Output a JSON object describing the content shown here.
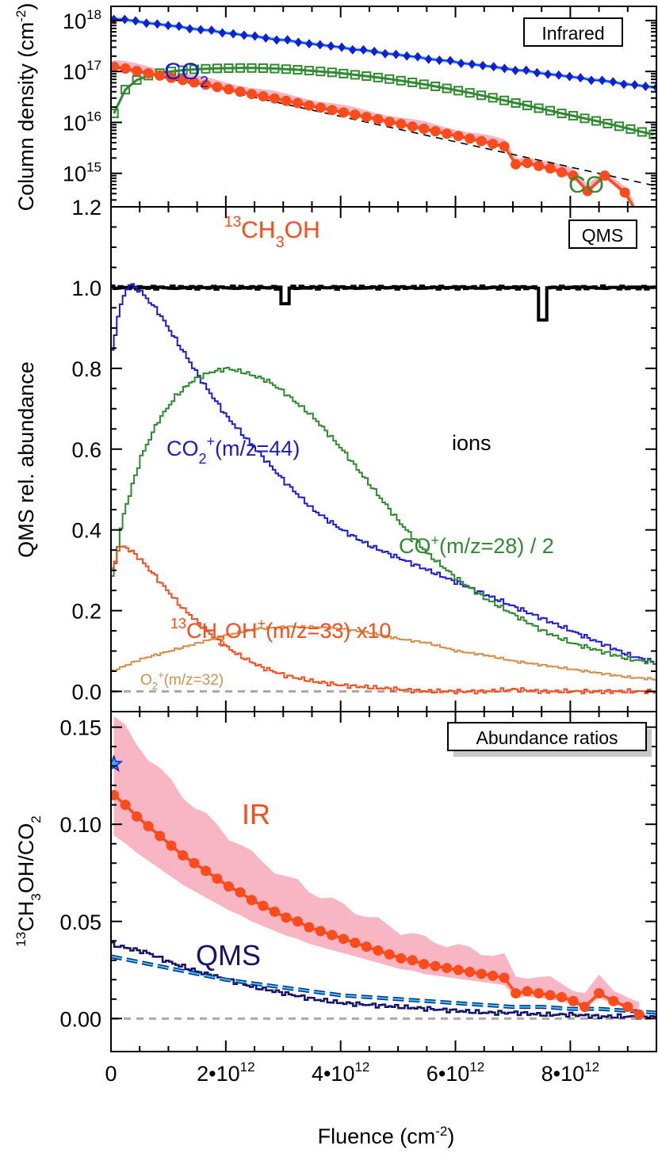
{
  "chart_data": [
    {
      "type": "line",
      "yscale": "log",
      "xlim": [
        0,
        9500000000000.0
      ],
      "ylim": [
        220000000000000.0,
        1.9e+18
      ],
      "ylabel_main": "Column density (cm",
      "ylabel_sup": "-2",
      "ylabel_end": ")",
      "legend_box": "Infrared",
      "yticks": [
        {
          "value": 1000000000000000.0,
          "base": "10",
          "exp": "15"
        },
        {
          "value": 1e+16,
          "base": "10",
          "exp": "16"
        },
        {
          "value": 1e+17,
          "base": "10",
          "exp": "17"
        },
        {
          "value": 1e+18,
          "base": "10",
          "exp": "18"
        }
      ],
      "labels": {
        "co2": {
          "main": "CO",
          "sub": "2"
        },
        "co": {
          "main": "CO"
        },
        "ch3oh": {
          "sup": "13",
          "a": "CH",
          "sub": "3",
          "b": "OH"
        }
      },
      "series": [
        {
          "key": "co2",
          "color": "#1a1adb",
          "fit_color": "#33ccff",
          "logy_start": 18.04,
          "logy_end": 16.68,
          "n": 51
        },
        {
          "key": "co",
          "color": "#2e8b2e",
          "x": [
            50000000000.0,
            250000000000.0,
            450000000000.0,
            650000000000.0,
            850000000000.0,
            1050000000000.0,
            1250000000000.0,
            1450000000000.0,
            1650000000000.0,
            1850000000000.0,
            2050000000000.0,
            2250000000000.0,
            2450000000000.0,
            2650000000000.0,
            2850000000000.0,
            3050000000000.0,
            3250000000000.0,
            3450000000000.0,
            3650000000000.0,
            3850000000000.0,
            4050000000000.0,
            4250000000000.0,
            4450000000000.0,
            4650000000000.0,
            4850000000000.0,
            5050000000000.0,
            5250000000000.0,
            5450000000000.0,
            5650000000000.0,
            5850000000000.0,
            6050000000000.0,
            6250000000000.0,
            6450000000000.0,
            6650000000000.0,
            6850000000000.0,
            7050000000000.0,
            7250000000000.0,
            7450000000000.0,
            7650000000000.0,
            7850000000000.0,
            8050000000000.0,
            8250000000000.0,
            8450000000000.0,
            8650000000000.0,
            8850000000000.0,
            9050000000000.0,
            9250000000000.0,
            9450000000000.0
          ],
          "y": [
            1.5e+16,
            4.4e+16,
            6.8e+16,
            8.3e+16,
            9.3e+16,
            1e+17,
            1.06e+17,
            1.1e+17,
            1.13e+17,
            1.15e+17,
            1.16e+17,
            1.17e+17,
            1.17e+17,
            1.16e+17,
            1.14e+17,
            1.11e+17,
            1.08e+17,
            1.04e+17,
            1e+17,
            9.6e+16,
            9.1e+16,
            8.6e+16,
            8.1e+16,
            7.6e+16,
            7.1e+16,
            6.6e+16,
            6.1e+16,
            5.6e+16,
            5.1e+16,
            4.65e+16,
            4.2e+16,
            3.8e+16,
            3.4e+16,
            3.05e+16,
            2.7e+16,
            2.4e+16,
            2.15e+16,
            1.9e+16,
            1.7e+16,
            1.5e+16,
            1.35e+16,
            1.2e+16,
            1.07e+16,
            9500000000000000.0,
            8400000000000000.0,
            7400000000000000.0,
            6500000000000000.0,
            5800000000000000.0
          ]
        },
        {
          "key": "ch3oh",
          "color": "#ff4a1a",
          "band_color": "#f8b6c4",
          "x": [
            50000000000.0,
            250000000000.0,
            450000000000.0,
            650000000000.0,
            850000000000.0,
            1050000000000.0,
            1250000000000.0,
            1450000000000.0,
            1650000000000.0,
            1850000000000.0,
            2050000000000.0,
            2250000000000.0,
            2450000000000.0,
            2650000000000.0,
            2850000000000.0,
            3050000000000.0,
            3250000000000.0,
            3450000000000.0,
            3650000000000.0,
            3850000000000.0,
            4050000000000.0,
            4250000000000.0,
            4450000000000.0,
            4650000000000.0,
            4850000000000.0,
            5050000000000.0,
            5250000000000.0,
            5450000000000.0,
            5650000000000.0,
            5850000000000.0,
            6050000000000.0,
            6250000000000.0,
            6450000000000.0,
            6650000000000.0,
            6850000000000.0,
            7050000000000.0,
            7250000000000.0,
            7450000000000.0,
            7650000000000.0,
            7850000000000.0,
            8050000000000.0,
            8300000000000.0,
            8600000000000.0,
            8950000000000.0,
            9100000000000.0
          ],
          "y": [
            1.25e+17,
            1.14e+17,
            1.02e+17,
            9.2e+16,
            8.3e+16,
            7.5e+16,
            6.8e+16,
            6.1e+16,
            5.5e+16,
            4.95e+16,
            4.45e+16,
            4e+16,
            3.6e+16,
            3.25e+16,
            2.95e+16,
            2.65e+16,
            2.4e+16,
            2.15e+16,
            1.95e+16,
            1.75e+16,
            1.57e+16,
            1.42e+16,
            1.28e+16,
            1.15e+16,
            1.03e+16,
            9300000000000000.0,
            8300000000000000.0,
            7500000000000000.0,
            6700000000000000.0,
            6000000000000000.0,
            5400000000000000.0,
            4800000000000000.0,
            4300000000000000.0,
            3800000000000000.0,
            3400000000000000.0,
            1500000000000000.0,
            1600000000000000.0,
            1400000000000000.0,
            1250000000000000.0,
            1050000000000000.0,
            900000000000000.0,
            450000000000000.0,
            900000000000000.0,
            420000000000000.0,
            220000000000000.0
          ]
        },
        {
          "key": "fit",
          "color": "#000000",
          "logy_start": 17.1,
          "logy_end": 14.75
        }
      ]
    },
    {
      "type": "line",
      "xlim": [
        0,
        9500000000000.0
      ],
      "ylim": [
        -0.05,
        1.2
      ],
      "ylabel": "QMS rel. abundance",
      "legend_box": "QMS",
      "yticks": [
        "0.0",
        "0.2",
        "0.4",
        "0.6",
        "0.8",
        "1.0",
        "1.2"
      ],
      "labels": {
        "co2": {
          "main": "CO",
          "sub": "2",
          "sup": "+",
          "rest": "(m/z=44)"
        },
        "co": {
          "main": "CO",
          "sup": "+",
          "rest": "(m/z=28) / 2"
        },
        "ch3oh": {
          "sup1": "13",
          "a": "CH",
          "sub": "3",
          "b": "OH",
          "sup2": "+",
          "rest": "(m/z=33) x10"
        },
        "o2": {
          "main": "O",
          "sub": "2",
          "sup": "+",
          "rest": "(m/z=32)"
        },
        "ions": "ions"
      },
      "series": [
        {
          "key": "ions",
          "color": "#000000",
          "level": 1.0,
          "dips": [
            {
              "x": 3000000000000.0,
              "y": 0.96
            },
            {
              "x": 7500000000000.0,
              "y": 0.92
            }
          ]
        },
        {
          "key": "co2",
          "color": "#1a1adb",
          "x": [
            0,
            100000000000.0,
            200000000000.0,
            300000000000.0,
            500000000000.0,
            800000000000.0,
            1200000000000.0,
            1600000000000.0,
            2000000000000.0,
            2500000000000.0,
            3000000000000.0,
            3500000000000.0,
            4000000000000.0,
            4500000000000.0,
            5000000000000.0,
            5500000000000.0,
            6000000000000.0,
            6500000000000.0,
            7000000000000.0,
            7500000000000.0,
            8000000000000.0,
            8500000000000.0,
            9000000000000.0,
            9500000000000.0
          ],
          "y": [
            0.84,
            0.93,
            0.98,
            1.01,
            0.99,
            0.94,
            0.85,
            0.76,
            0.68,
            0.6,
            0.52,
            0.45,
            0.4,
            0.36,
            0.33,
            0.3,
            0.27,
            0.24,
            0.21,
            0.18,
            0.15,
            0.12,
            0.09,
            0.07
          ]
        },
        {
          "key": "co",
          "color": "#2e8b2e",
          "x": [
            0,
            200000000000.0,
            500000000000.0,
            800000000000.0,
            1100000000000.0,
            1400000000000.0,
            1700000000000.0,
            2000000000000.0,
            2300000000000.0,
            2700000000000.0,
            3000000000000.0,
            3500000000000.0,
            4000000000000.0,
            4500000000000.0,
            5000000000000.0,
            5500000000000.0,
            6000000000000.0,
            6500000000000.0,
            7000000000000.0,
            7500000000000.0,
            8000000000000.0,
            8500000000000.0,
            9000000000000.0,
            9500000000000.0
          ],
          "y": [
            0.28,
            0.44,
            0.58,
            0.67,
            0.73,
            0.77,
            0.79,
            0.8,
            0.79,
            0.77,
            0.74,
            0.68,
            0.6,
            0.51,
            0.42,
            0.34,
            0.28,
            0.23,
            0.19,
            0.15,
            0.12,
            0.1,
            0.08,
            0.07
          ]
        },
        {
          "key": "ch3oh",
          "color": "#ff4a1a",
          "x": [
            0,
            100000000000.0,
            200000000000.0,
            400000000000.0,
            600000000000.0,
            900000000000.0,
            1200000000000.0,
            1500000000000.0,
            1800000000000.0,
            2200000000000.0,
            2600000000000.0,
            3000000000000.0,
            3500000000000.0,
            4000000000000.0,
            4500000000000.0,
            5000000000000.0,
            5500000000000.0,
            6000000000000.0,
            6500000000000.0,
            7000000000000.0,
            7500000000000.0,
            8000000000000.0,
            8500000000000.0,
            9000000000000.0,
            9500000000000.0
          ],
          "y": [
            0.3,
            0.35,
            0.36,
            0.34,
            0.31,
            0.26,
            0.21,
            0.17,
            0.13,
            0.09,
            0.06,
            0.04,
            0.025,
            0.015,
            0.01,
            0.005,
            0.0,
            0.0,
            0.0,
            0.005,
            0.0,
            0.0,
            0.0,
            0.0,
            0.0
          ]
        },
        {
          "key": "o2",
          "color": "#d4914a",
          "x": [
            0,
            500000000000.0,
            1000000000000.0,
            1500000000000.0,
            2000000000000.0,
            2500000000000.0,
            3000000000000.0,
            3500000000000.0,
            4000000000000.0,
            4500000000000.0,
            5000000000000.0,
            5500000000000.0,
            6000000000000.0,
            6500000000000.0,
            7000000000000.0,
            7500000000000.0,
            8000000000000.0,
            8500000000000.0,
            9000000000000.0,
            9500000000000.0
          ],
          "y": [
            0.05,
            0.08,
            0.1,
            0.12,
            0.14,
            0.155,
            0.16,
            0.16,
            0.155,
            0.145,
            0.13,
            0.12,
            0.1,
            0.09,
            0.075,
            0.065,
            0.055,
            0.045,
            0.035,
            0.03
          ]
        }
      ]
    },
    {
      "type": "line",
      "xlim": [
        0,
        9500000000000.0
      ],
      "ylim": [
        -0.017,
        0.158
      ],
      "ylabel": {
        "sup": "13",
        "a": "CH",
        "sub": "3",
        "b": "OH/CO",
        "sub2": "2"
      },
      "legend_box": "Abundance ratios",
      "yticks": [
        "0.00",
        "0.05",
        "0.10",
        "0.15"
      ],
      "xticks": [
        {
          "value": 0,
          "label": "0"
        },
        {
          "value": 2000000000000.0,
          "base": "2•10",
          "exp": "12"
        },
        {
          "value": 4000000000000.0,
          "base": "4•10",
          "exp": "12"
        },
        {
          "value": 6000000000000.0,
          "base": "6•10",
          "exp": "12"
        },
        {
          "value": 8000000000000.0,
          "base": "8•10",
          "exp": "12"
        }
      ],
      "xlabel_main": "Fluence (cm",
      "xlabel_sup": "-2",
      "xlabel_end": ")",
      "labels": {
        "ir": "IR",
        "qms": "QMS"
      },
      "series": [
        {
          "key": "ir",
          "color": "#ff4a1a",
          "band_color": "#f8b6c4",
          "x": [
            50000000000.0,
            250000000000.0,
            450000000000.0,
            650000000000.0,
            850000000000.0,
            1050000000000.0,
            1250000000000.0,
            1450000000000.0,
            1650000000000.0,
            1850000000000.0,
            2050000000000.0,
            2250000000000.0,
            2450000000000.0,
            2650000000000.0,
            2850000000000.0,
            3050000000000.0,
            3250000000000.0,
            3450000000000.0,
            3650000000000.0,
            3850000000000.0,
            4050000000000.0,
            4250000000000.0,
            4450000000000.0,
            4650000000000.0,
            4850000000000.0,
            5050000000000.0,
            5250000000000.0,
            5450000000000.0,
            5650000000000.0,
            5850000000000.0,
            6050000000000.0,
            6250000000000.0,
            6450000000000.0,
            6650000000000.0,
            6850000000000.0,
            7050000000000.0,
            7250000000000.0,
            7450000000000.0,
            7650000000000.0,
            7850000000000.0,
            8050000000000.0,
            8250000000000.0,
            8500000000000.0,
            8750000000000.0,
            9000000000000.0,
            9200000000000.0
          ],
          "y": [
            0.115,
            0.11,
            0.104,
            0.099,
            0.094,
            0.089,
            0.084,
            0.08,
            0.076,
            0.072,
            0.068,
            0.065,
            0.061,
            0.058,
            0.055,
            0.052,
            0.05,
            0.047,
            0.045,
            0.043,
            0.041,
            0.039,
            0.037,
            0.035,
            0.033,
            0.031,
            0.03,
            0.028,
            0.027,
            0.026,
            0.025,
            0.024,
            0.023,
            0.022,
            0.021,
            0.013,
            0.014,
            0.013,
            0.012,
            0.011,
            0.009,
            0.006,
            0.013,
            0.009,
            0.006,
            0.002
          ]
        },
        {
          "key": "star",
          "color": "#33aaff",
          "x": 50000000000.0,
          "y": 0.131
        },
        {
          "key": "qms",
          "color": "#14146e",
          "x": [
            0,
            300000000000.0,
            600000000000.0,
            1000000000000.0,
            1500000000000.0,
            2000000000000.0,
            2500000000000.0,
            3000000000000.0,
            3500000000000.0,
            4000000000000.0,
            4500000000000.0,
            5000000000000.0,
            5500000000000.0,
            6000000000000.0,
            6500000000000.0,
            7000000000000.0,
            7500000000000.0,
            8000000000000.0,
            8500000000000.0,
            9000000000000.0,
            9500000000000.0
          ],
          "y": [
            0.038,
            0.036,
            0.034,
            0.029,
            0.024,
            0.02,
            0.016,
            0.013,
            0.01,
            0.008,
            0.007,
            0.006,
            0.005,
            0.004,
            0.003,
            0.003,
            0.002,
            0.002,
            0.001,
            0.001,
            0.001
          ]
        },
        {
          "key": "qms_fit",
          "color": "#0a2a8a",
          "fit_color": "#33ccff",
          "x": [
            0,
            500000000000.0,
            1000000000000.0,
            1500000000000.0,
            2000000000000.0,
            2500000000000.0,
            3000000000000.0,
            3500000000000.0,
            4000000000000.0,
            4500000000000.0,
            5000000000000.0,
            5500000000000.0,
            6000000000000.0,
            6500000000000.0,
            7000000000000.0,
            7500000000000.0,
            8000000000000.0,
            8500000000000.0,
            9000000000000.0,
            9500000000000.0
          ],
          "y": [
            0.032,
            0.029,
            0.026,
            0.023,
            0.02,
            0.018,
            0.016,
            0.014,
            0.012,
            0.011,
            0.01,
            0.009,
            0.008,
            0.007,
            0.006,
            0.006,
            0.005,
            0.005,
            0.004,
            0.003
          ]
        }
      ]
    }
  ]
}
